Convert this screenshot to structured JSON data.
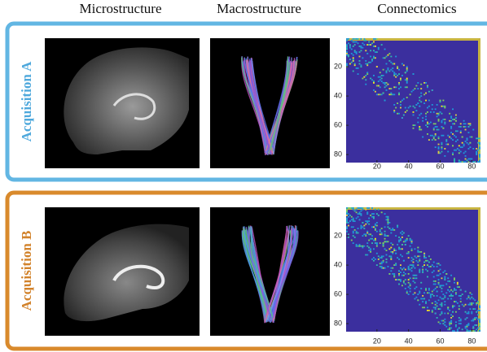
{
  "header": {
    "columns": [
      "Microstructure",
      "Macrostructure",
      "Connectomics"
    ]
  },
  "rows": [
    {
      "label": "Acquisition A",
      "matrix": {
        "yticks": [
          20,
          40,
          60,
          80
        ],
        "xticks": [
          20,
          40,
          60,
          80
        ]
      }
    },
    {
      "label": "Acquisition B",
      "matrix": {
        "yticks": [
          20,
          40,
          60,
          80
        ],
        "xticks": [
          20,
          40,
          60,
          80
        ]
      }
    }
  ]
}
